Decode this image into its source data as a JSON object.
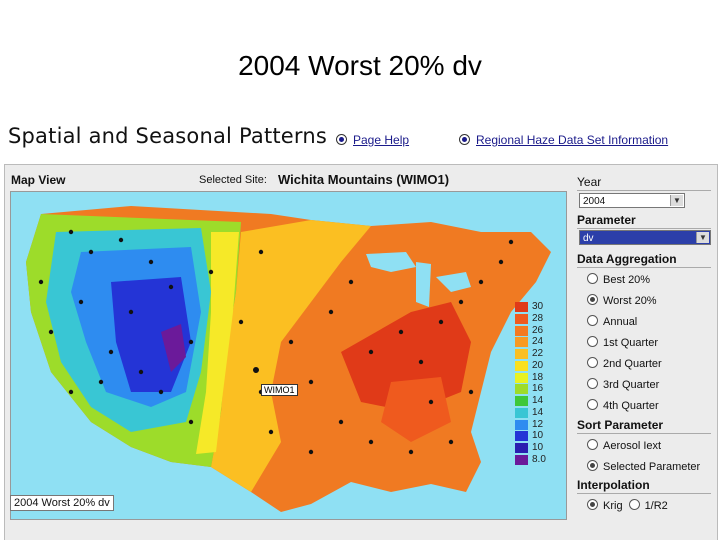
{
  "slide": {
    "title": "2004 Worst 20% dv"
  },
  "header": {
    "title": "Spatial and Seasonal Patterns",
    "page_help": "Page Help",
    "regional_link": "Regional Haze Data Set Information"
  },
  "map": {
    "title": "Map View",
    "selected_site_label": "Selected Site:",
    "selected_site_value": "Wichita Mountains (WIMO1)",
    "site_marker": "WIMO1",
    "caption": "2004 Worst 20% dv",
    "scale": [
      {
        "label": "30",
        "color": "#e03a18"
      },
      {
        "label": "28",
        "color": "#ef5a1e"
      },
      {
        "label": "26",
        "color": "#f47a20"
      },
      {
        "label": "24",
        "color": "#f89a23"
      },
      {
        "label": "22",
        "color": "#fbbf22"
      },
      {
        "label": "20",
        "color": "#fbe01e"
      },
      {
        "label": "18",
        "color": "#e8f222"
      },
      {
        "label": "16",
        "color": "#9ddc2a"
      },
      {
        "label": "14",
        "color": "#3ec83a"
      },
      {
        "label": "14",
        "color": "#39c6d4"
      },
      {
        "label": "12",
        "color": "#2e8cf0"
      },
      {
        "label": "10",
        "color": "#2434d6"
      },
      {
        "label": "10",
        "color": "#2a1fb0"
      },
      {
        "label": "8.0",
        "color": "#6b1a9a"
      }
    ]
  },
  "sidebar": {
    "year_label": "Year",
    "year_value": "2004",
    "parameter_label": "Parameter",
    "parameter_value": "dv",
    "aggregation_label": "Data Aggregation",
    "aggregation_options": [
      {
        "label": "Best 20%",
        "selected": false
      },
      {
        "label": "Worst 20%",
        "selected": true
      },
      {
        "label": "Annual",
        "selected": false
      },
      {
        "label": "1st Quarter",
        "selected": false
      },
      {
        "label": "2nd Quarter",
        "selected": false
      },
      {
        "label": "3rd Quarter",
        "selected": false
      },
      {
        "label": "4th Quarter",
        "selected": false
      }
    ],
    "sort_label": "Sort Parameter",
    "sort_options": [
      {
        "label": "Aerosol Iext",
        "selected": false
      },
      {
        "label": "Selected Parameter",
        "selected": true
      }
    ],
    "interp_label": "Interpolation",
    "interp_options": [
      {
        "label": "Krig",
        "selected": true
      },
      {
        "label": "1/R2",
        "selected": false
      }
    ]
  }
}
